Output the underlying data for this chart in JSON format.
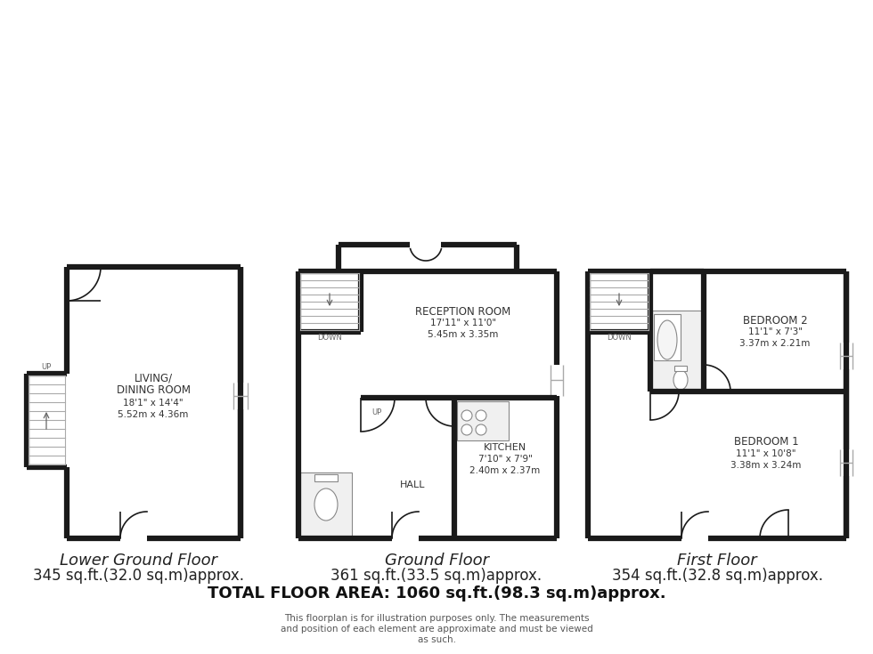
{
  "bg_color": "#ffffff",
  "wall_color": "#1a1a1a",
  "wall_lw": 4.5,
  "stair_color": "#aaaaaa",
  "text_color": "#333333",
  "floor_label_fontsize": 13,
  "area_label_fontsize": 12,
  "room_name_fontsize": 8.5,
  "room_dim_fontsize": 7.5,
  "small_label_fontsize": 6,
  "total_area_fontsize": 13,
  "disclaimer_fontsize": 7.5,
  "floor_labels": [
    "Lower Ground Floor",
    "Ground Floor",
    "First Floor"
  ],
  "floor_areas": [
    "345 sq.ft.(32.0 sq.m)approx.",
    "361 sq.ft.(33.5 sq.m)approx.",
    "354 sq.ft.(32.8 sq.m)approx."
  ],
  "total_area": "TOTAL FLOOR AREA: 1060 sq.ft.(98.3 sq.m)approx.",
  "disclaimer": "This floorplan is for illustration purposes only. The measurements\nand position of each element are approximate and must be viewed\nas such."
}
